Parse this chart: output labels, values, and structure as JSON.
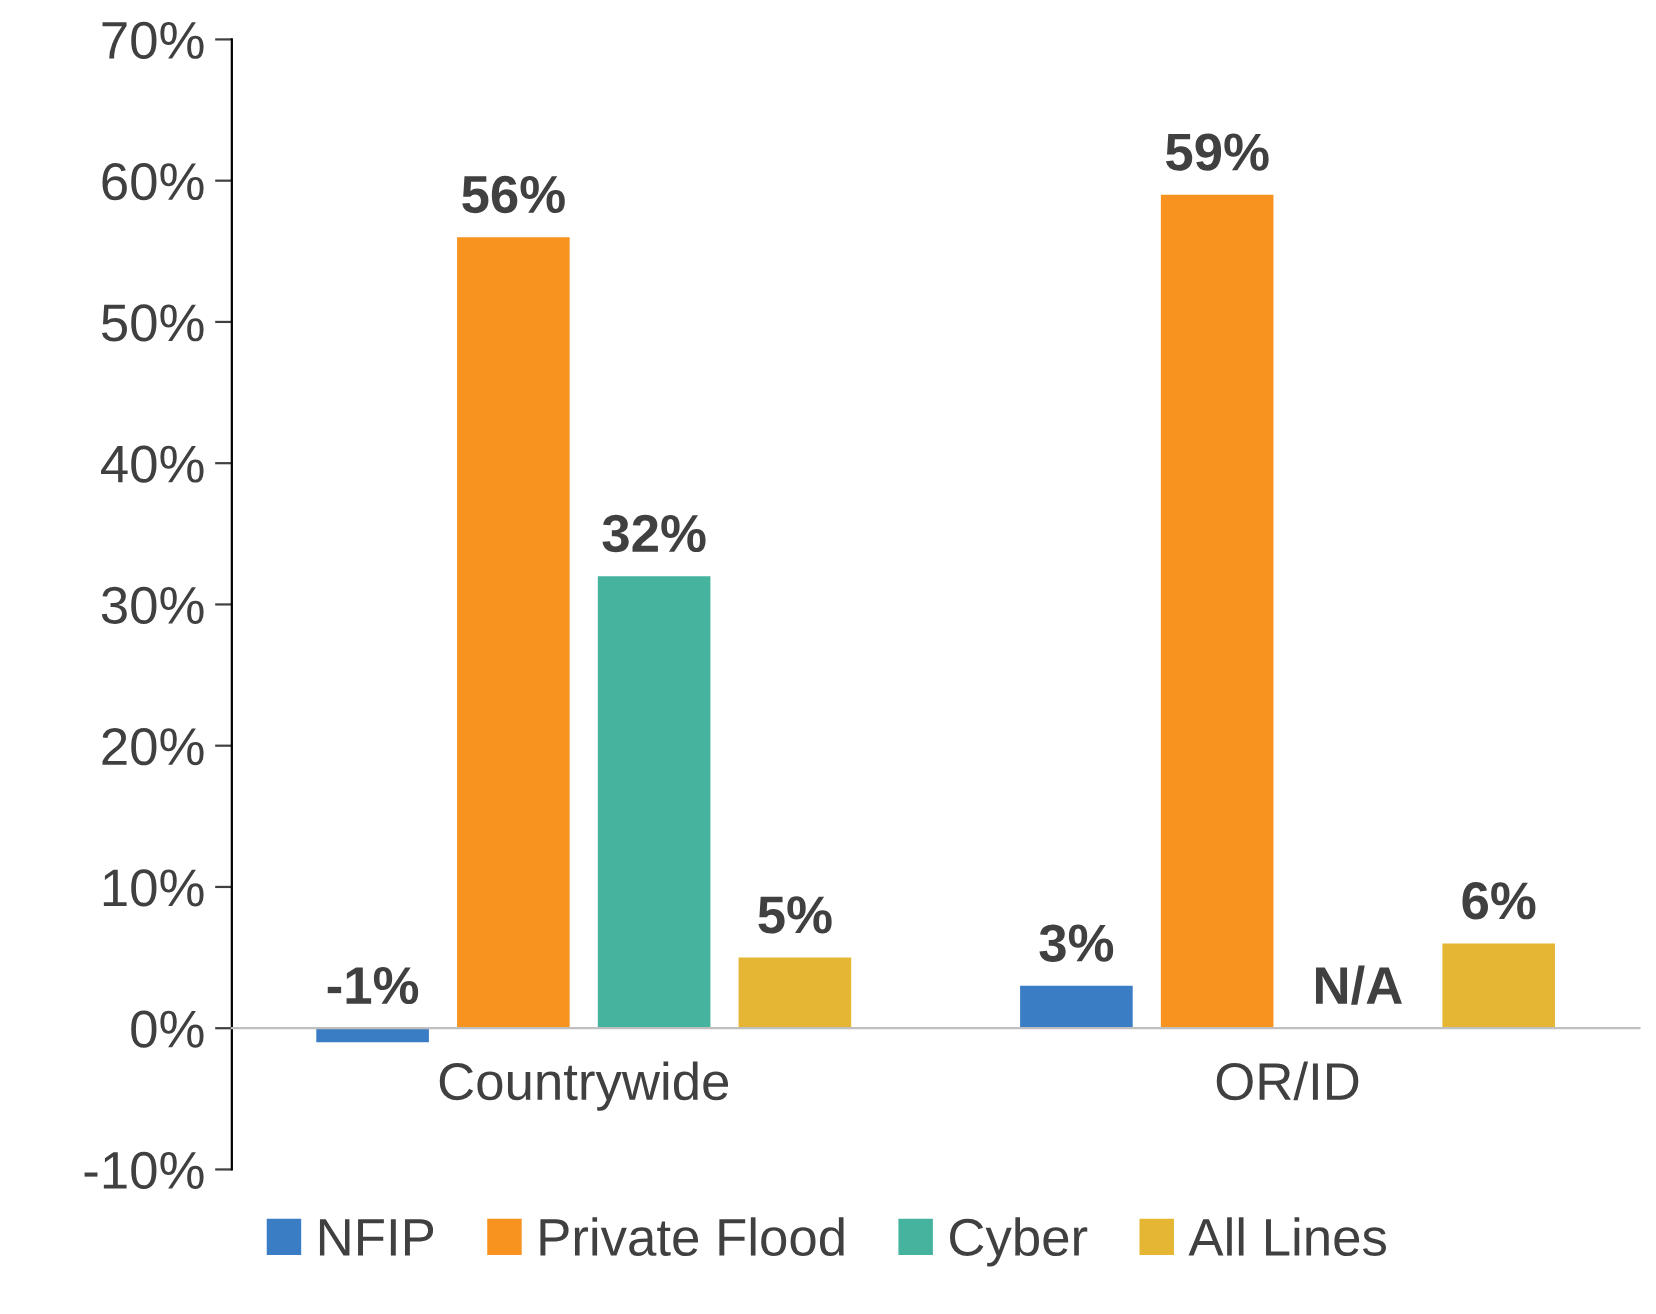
{
  "chart_data": {
    "type": "bar",
    "categories": [
      "Countrywide",
      "OR/ID"
    ],
    "series": [
      {
        "name": "NFIP",
        "color": "#3a7dc4",
        "values": [
          -1,
          3
        ],
        "value_labels": [
          "-1%",
          "3%"
        ]
      },
      {
        "name": "Private Flood",
        "color": "#f7931e",
        "values": [
          56,
          59
        ],
        "value_labels": [
          "56%",
          "59%"
        ]
      },
      {
        "name": "Cyber",
        "color": "#45b39d",
        "values": [
          32,
          null
        ],
        "value_labels": [
          "32%",
          "N/A"
        ]
      },
      {
        "name": "All Lines",
        "color": "#e5b634",
        "values": [
          5,
          6
        ],
        "value_labels": [
          "5%",
          "6%"
        ]
      }
    ],
    "ylim": [
      -10,
      70
    ],
    "yticks": [
      {
        "value": -10,
        "label": "-10%"
      },
      {
        "value": 0,
        "label": "0%"
      },
      {
        "value": 10,
        "label": "10%"
      },
      {
        "value": 20,
        "label": "20%"
      },
      {
        "value": 30,
        "label": "30%"
      },
      {
        "value": 40,
        "label": "40%"
      },
      {
        "value": 50,
        "label": "50%"
      },
      {
        "value": 60,
        "label": "60%"
      },
      {
        "value": 70,
        "label": "70%"
      }
    ],
    "grid": false,
    "legend": "bottom"
  }
}
